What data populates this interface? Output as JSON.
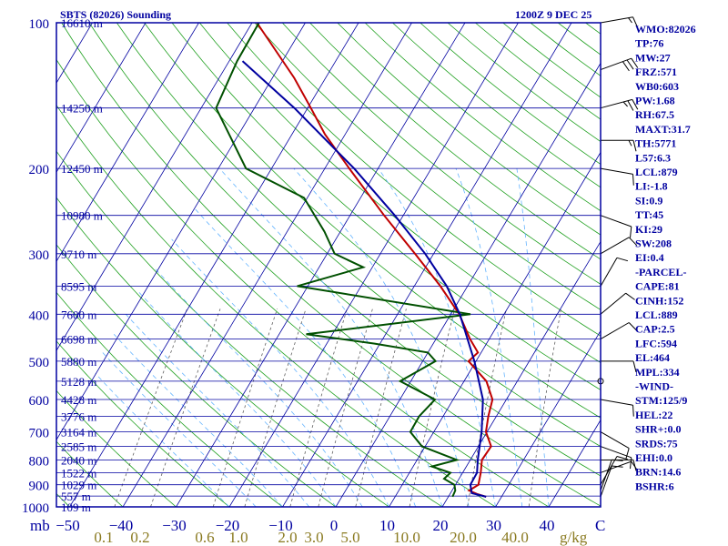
{
  "chart_data": {
    "type": "line",
    "title": "SBTS (82026) Sounding",
    "valid_time": "1200Z  9 DEC 25",
    "y_axis": {
      "scale": "log",
      "units": "mb",
      "range": [
        1000,
        100
      ],
      "ticks": [
        "100",
        "200",
        "300",
        "400",
        "500",
        "600",
        "700",
        "800",
        "900",
        "1000"
      ]
    },
    "x_axis": {
      "units": "C",
      "ticks": [
        "−50",
        "−40",
        "−30",
        "−20",
        "−10",
        "0",
        "10",
        "20",
        "30",
        "40"
      ],
      "unit_labels": {
        "left": "mb",
        "right": "C"
      }
    },
    "mixing_ratio_axis": {
      "units": "g/kg",
      "ticks": [
        "0.1",
        "0.2",
        "0.6",
        "1.0",
        "2.0",
        "3.0",
        "5.0",
        "10.0",
        "20.0",
        "40.0"
      ]
    },
    "height_labels": [
      {
        "p": 100,
        "label": "16610 m"
      },
      {
        "p": 150,
        "label": "14250 m"
      },
      {
        "p": 200,
        "label": "12450 m"
      },
      {
        "p": 250,
        "label": "10980 m"
      },
      {
        "p": 300,
        "label": "9710 m"
      },
      {
        "p": 350,
        "label": "8595 m"
      },
      {
        "p": 400,
        "label": "7600 m"
      },
      {
        "p": 450,
        "label": "6698 m"
      },
      {
        "p": 500,
        "label": "5880 m"
      },
      {
        "p": 550,
        "label": "5128 m"
      },
      {
        "p": 600,
        "label": "4428 m"
      },
      {
        "p": 650,
        "label": "3776 m"
      },
      {
        "p": 700,
        "label": "3164 m"
      },
      {
        "p": 750,
        "label": "2585 m"
      },
      {
        "p": 800,
        "label": "2040 m"
      },
      {
        "p": 850,
        "label": "1522 m"
      },
      {
        "p": 900,
        "label": "1029 m"
      },
      {
        "p": 950,
        "label": "557 m"
      },
      {
        "p": 1000,
        "label": "109 m"
      }
    ],
    "series": [
      {
        "name": "Temperature",
        "color": "#c00000",
        "points": [
          [
            953,
            27.1
          ],
          [
            940,
            25
          ],
          [
            925,
            23.2
          ],
          [
            900,
            24.3
          ],
          [
            850,
            23.4
          ],
          [
            800,
            22.2
          ],
          [
            750,
            22.4
          ],
          [
            700,
            19.8
          ],
          [
            650,
            18.5
          ],
          [
            600,
            17.4
          ],
          [
            550,
            14.2
          ],
          [
            500,
            8.6
          ],
          [
            480,
            9.4
          ],
          [
            450,
            6.4
          ],
          [
            400,
            1.6
          ],
          [
            350,
            -5.1
          ],
          [
            300,
            -13.5
          ],
          [
            250,
            -23.6
          ],
          [
            200,
            -35.4
          ],
          [
            170,
            -43.8
          ],
          [
            150,
            -49.4
          ],
          [
            130,
            -55.9
          ],
          [
            110,
            -64.3
          ],
          [
            100,
            -69.1
          ]
        ]
      },
      {
        "name": "Dewpoint",
        "color": "#005000",
        "points": [
          [
            953,
            20.8
          ],
          [
            925,
            20.6
          ],
          [
            900,
            19.8
          ],
          [
            875,
            17.2
          ],
          [
            850,
            17.7
          ],
          [
            825,
            13.5
          ],
          [
            800,
            17.5
          ],
          [
            750,
            9.4
          ],
          [
            700,
            5.6
          ],
          [
            650,
            5.5
          ],
          [
            600,
            6.6
          ],
          [
            550,
            -2
          ],
          [
            500,
            2.4
          ],
          [
            480,
            0
          ],
          [
            460,
            -11
          ],
          [
            440,
            -24.9
          ],
          [
            400,
            3.7
          ],
          [
            350,
            -32
          ],
          [
            320,
            -21.7
          ],
          [
            300,
            -28.6
          ],
          [
            270,
            -33
          ],
          [
            230,
            -40.6
          ],
          [
            200,
            -54.8
          ],
          [
            150,
            -67.2
          ],
          [
            120,
            -68.5
          ],
          [
            100,
            -68.7
          ]
        ]
      },
      {
        "name": "Parcel",
        "color": "#0000a0",
        "points": [
          [
            953,
            27.1
          ],
          [
            937,
            24
          ],
          [
            900,
            22.8
          ],
          [
            850,
            22.7
          ],
          [
            800,
            21.4
          ],
          [
            700,
            19
          ],
          [
            600,
            15.6
          ],
          [
            500,
            9.7
          ],
          [
            400,
            1.7
          ],
          [
            350,
            -3.9
          ],
          [
            300,
            -11.6
          ],
          [
            250,
            -21.6
          ],
          [
            200,
            -34.5
          ],
          [
            150,
            -52.5
          ],
          [
            120,
            -67.5
          ]
        ]
      }
    ],
    "wind_barbs": [
      {
        "p": 100,
        "dir": 80,
        "spd": 15
      },
      {
        "p": 125,
        "dir": 70,
        "spd": 30
      },
      {
        "p": 150,
        "dir": 75,
        "spd": 25
      },
      {
        "p": 175,
        "dir": 90,
        "spd": 15
      },
      {
        "p": 200,
        "dir": 100,
        "spd": 10
      },
      {
        "p": 250,
        "dir": 110,
        "spd": 10
      },
      {
        "p": 300,
        "dir": 60,
        "spd": 10
      },
      {
        "p": 350,
        "dir": 30,
        "spd": 10
      },
      {
        "p": 400,
        "dir": 50,
        "spd": 10
      },
      {
        "p": 450,
        "dir": 60,
        "spd": 10
      },
      {
        "p": 500,
        "dir": 90,
        "spd": 10
      },
      {
        "p": 550,
        "dir": 0,
        "spd": 0
      },
      {
        "p": 600,
        "dir": 100,
        "spd": 10
      },
      {
        "p": 700,
        "dir": 120,
        "spd": 10
      },
      {
        "p": 750,
        "dir": 110,
        "spd": 10
      },
      {
        "p": 800,
        "dir": 90,
        "spd": 10
      },
      {
        "p": 850,
        "dir": 70,
        "spd": 10
      },
      {
        "p": 900,
        "dir": 30,
        "spd": 10
      },
      {
        "p": 925,
        "dir": 20,
        "spd": 10
      },
      {
        "p": 953,
        "dir": 20,
        "spd": 10
      }
    ],
    "indices": [
      "WMO:82026",
      "TP:76",
      "MW:27",
      "FRZ:571",
      "WB0:603",
      "PW:1.68",
      "RH:67.5",
      "MAXT:31.7",
      "TH:5771",
      "L57:6.3",
      "LCL:879",
      "LI:-1.8",
      "SI:0.9",
      "TT:45",
      "KI:29",
      "SW:208",
      "EI:0.4",
      "-PARCEL-",
      "CAPE:81",
      "CINH:152",
      "LCL:889",
      "CAP:2.5",
      "LFC:594",
      "EL:464",
      "MPL:334",
      "-WIND-",
      "STM:125/9",
      "HEL:22",
      "SHR+:0.0",
      "SRDS:75",
      "EHI:0.0",
      "BRN:14.6",
      "BSHR:6"
    ],
    "colors": {
      "frame": "#0000a0",
      "isotherms": "#0000a0",
      "dry_adiabats": "#20a020",
      "moist_adiabats": "#64b4ff",
      "mixing_ratio": "#606060"
    }
  }
}
